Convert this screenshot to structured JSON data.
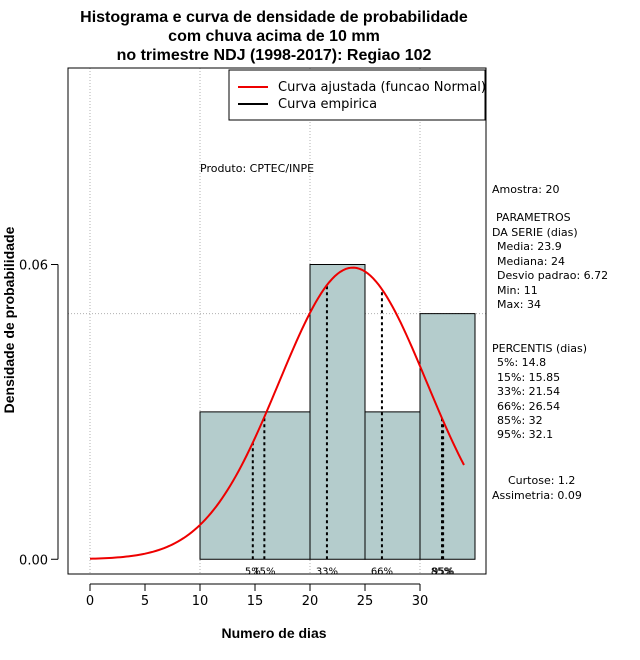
{
  "chart_data": {
    "type": "histogram",
    "title_lines": [
      "Histograma e curva de densidade de probabilidade",
      "com chuva acima de 10 mm",
      "no trimestre NDJ (1998-2017): Regiao 102"
    ],
    "xlabel": "Numero de dias",
    "ylabel": "Densidade de probabilidade",
    "xlim": [
      -2,
      36
    ],
    "ylim": [
      -0.003,
      0.1
    ],
    "xticks": [
      "0",
      "5",
      "10",
      "15",
      "20",
      "25",
      "30"
    ],
    "yticks": [
      "0.00",
      "0.06"
    ],
    "bins": [
      {
        "x0": 10,
        "x1": 20,
        "density": 0.03
      },
      {
        "x0": 20,
        "x1": 25,
        "density": 0.06
      },
      {
        "x0": 25,
        "x1": 30,
        "density": 0.03
      },
      {
        "x0": 30,
        "x1": 35,
        "density": 0.05
      }
    ],
    "fitted_curve": {
      "name": "Curva ajustada (funcao Normal)",
      "color": "#ee0000",
      "mean": 23.9,
      "sd": 6.72,
      "x_range": [
        0,
        34
      ]
    },
    "empirical_curve": {
      "name": "Curva empirica",
      "color": "#000000"
    },
    "gridlines_y": [
      0.05,
      0.1
    ],
    "gridlines_x": [
      0,
      10,
      20,
      30
    ],
    "bar_color": "#b4cccc",
    "percentiles": [
      {
        "label": "5%",
        "value": 14.8
      },
      {
        "label": "15%",
        "value": 15.85
      },
      {
        "label": "33%",
        "value": 21.54
      },
      {
        "label": "66%",
        "value": 26.54
      },
      {
        "label": "85%",
        "value": 32
      },
      {
        "label": "95%",
        "value": 32.1
      }
    ],
    "product_note": "Produto: CPTEC/INPE",
    "legend_position": "top-right"
  },
  "stats": {
    "amostra": "Amostra: 20",
    "param_header_1": "PARAMETROS",
    "param_header_2": "DA SERIE (dias)",
    "media": "Media: 23.9",
    "mediana": "Mediana: 24",
    "desvio": "Desvio padrao: 6.72",
    "min": "Min: 11",
    "max": "Max: 34",
    "percentis_header": "PERCENTIS (dias)",
    "p5": "5%: 14.8",
    "p15": "15%: 15.85",
    "p33": "33%: 21.54",
    "p66": "66%: 26.54",
    "p85": "85%: 32",
    "p95": "95%: 32.1",
    "curtose": "Curtose: 1.2",
    "assimetria": "Assimetria: 0.09"
  }
}
